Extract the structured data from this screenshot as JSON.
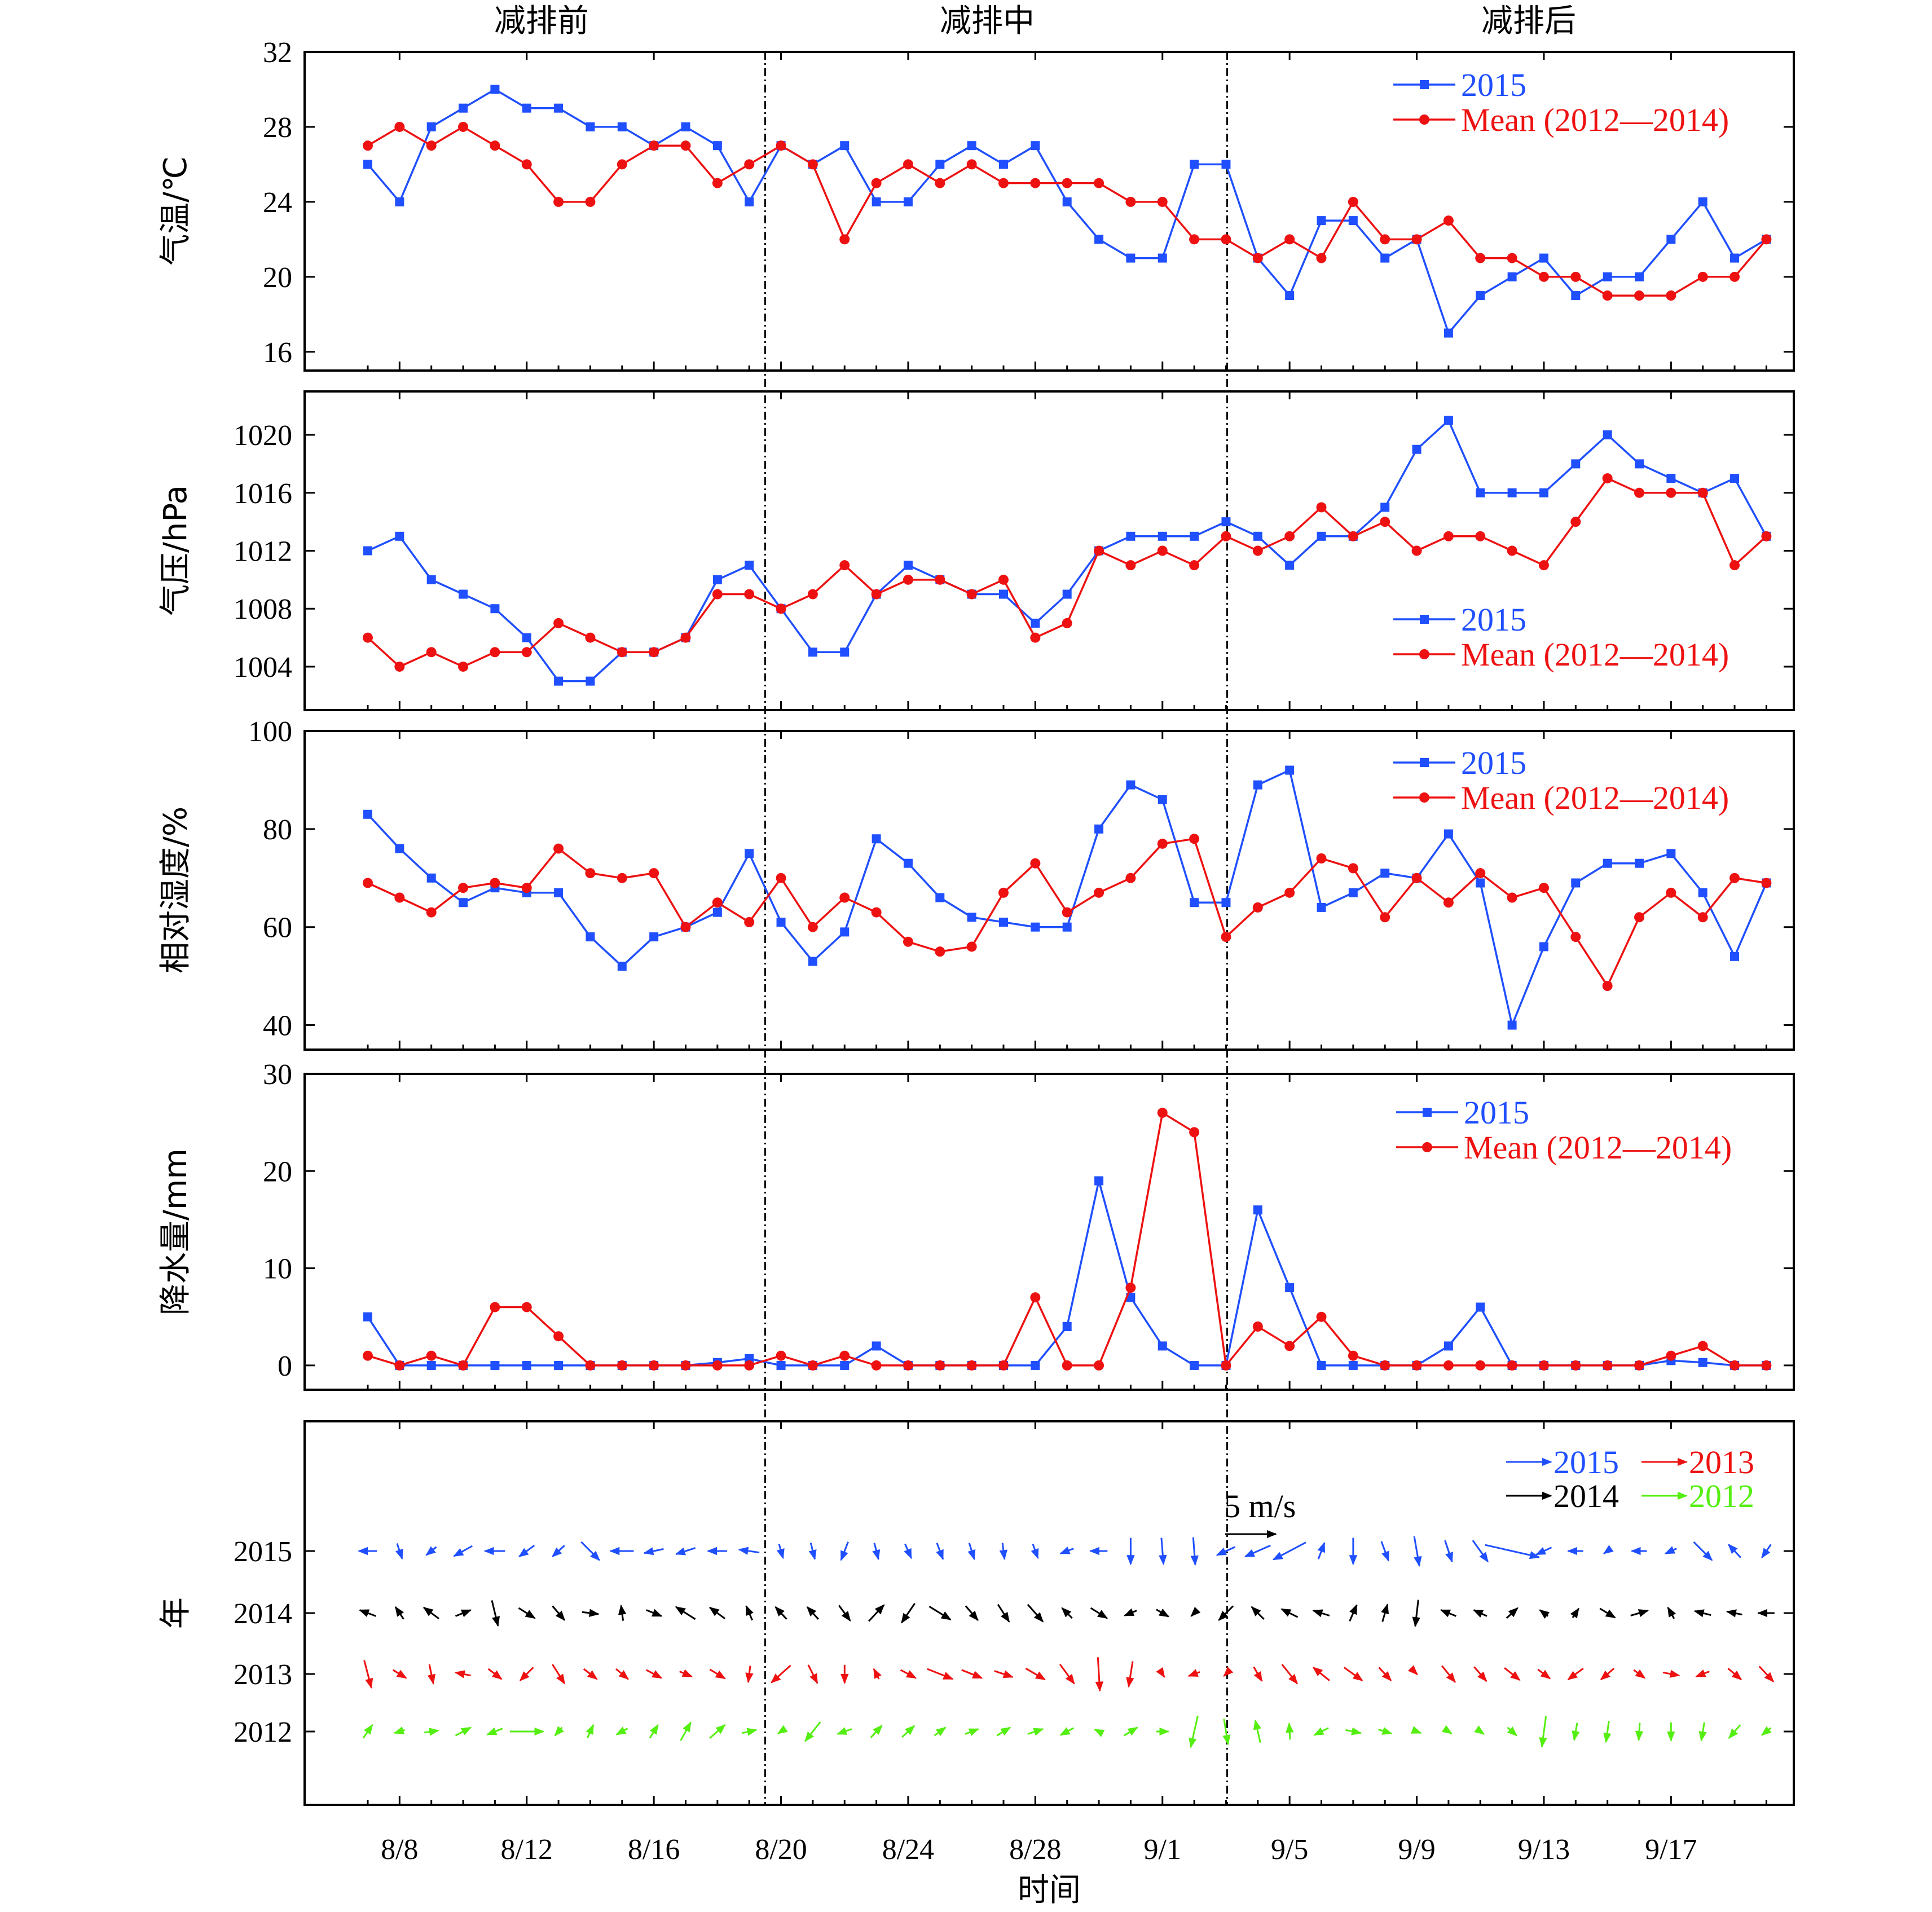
{
  "chart_data": {
    "type": "line",
    "dates": [
      "8/7",
      "8/8",
      "8/9",
      "8/10",
      "8/11",
      "8/12",
      "8/13",
      "8/14",
      "8/15",
      "8/16",
      "8/17",
      "8/18",
      "8/19",
      "8/20",
      "8/21",
      "8/22",
      "8/23",
      "8/24",
      "8/25",
      "8/26",
      "8/27",
      "8/28",
      "8/29",
      "8/30",
      "8/31",
      "9/1",
      "9/2",
      "9/3",
      "9/4",
      "9/5",
      "9/6",
      "9/7",
      "9/8",
      "9/9",
      "9/10",
      "9/11",
      "9/12",
      "9/13",
      "9/14",
      "9/15",
      "9/16",
      "9/17",
      "9/18",
      "9/19",
      "9/20"
    ],
    "xticks": [
      "8/8",
      "8/12",
      "8/16",
      "8/20",
      "8/24",
      "8/28",
      "9/1",
      "9/5",
      "9/9",
      "9/13",
      "9/17"
    ],
    "xlabel": "时间",
    "phases": [
      "减排前",
      "减排中",
      "减排后"
    ],
    "phase_dividers_between": [
      "8/19",
      "9/3"
    ],
    "panels": [
      {
        "id": "temperature",
        "ylabel": "气温/℃",
        "ylim": [
          15,
          32
        ],
        "yticks": [
          16,
          20,
          24,
          28,
          32
        ],
        "legend": [
          "2015",
          "Mean (2012—2014)"
        ],
        "series": [
          {
            "name": "2015",
            "color": "#1f4fff",
            "marker": "square",
            "values": [
              26,
              24,
              28,
              29,
              30,
              29,
              29,
              28,
              28,
              27,
              28,
              27,
              24,
              27,
              26,
              27,
              24,
              24,
              26,
              27,
              26,
              27,
              24,
              22,
              21,
              21,
              26,
              26,
              21,
              19,
              23,
              23,
              21,
              22,
              17,
              19,
              20,
              21,
              19,
              20,
              20,
              22,
              24,
              21,
              22
            ]
          },
          {
            "name": "Mean (2012—2014)",
            "color": "#ee1111",
            "marker": "circle",
            "values": [
              27,
              28,
              27,
              28,
              27,
              26,
              24,
              24,
              26,
              27,
              27,
              25,
              26,
              27,
              26,
              22,
              25,
              26,
              25,
              26,
              25,
              25,
              25,
              25,
              24,
              24,
              22,
              22,
              21,
              22,
              21,
              24,
              22,
              22,
              23,
              21,
              21,
              20,
              20,
              19,
              19,
              19,
              20,
              20,
              22
            ]
          }
        ]
      },
      {
        "id": "pressure",
        "ylabel": "气压/hPa",
        "ylim": [
          1001,
          1023
        ],
        "yticks": [
          1004,
          1008,
          1012,
          1016,
          1020
        ],
        "legend": [
          "2015",
          "Mean (2012—2014)"
        ],
        "series": [
          {
            "name": "2015",
            "color": "#1f4fff",
            "marker": "square",
            "values": [
              1012,
              1013,
              1010,
              1009,
              1008,
              1006,
              1003,
              1003,
              1005,
              1005,
              1006,
              1010,
              1011,
              1008,
              1005,
              1005,
              1009,
              1011,
              1010,
              1009,
              1009,
              1007,
              1009,
              1012,
              1013,
              1013,
              1013,
              1014,
              1013,
              1011,
              1013,
              1013,
              1015,
              1019,
              1021,
              1016,
              1016,
              1016,
              1018,
              1020,
              1018,
              1017,
              1016,
              1017,
              1013
            ]
          },
          {
            "name": "Mean (2012—2014)",
            "color": "#ee1111",
            "marker": "circle",
            "values": [
              1006,
              1004,
              1005,
              1004,
              1005,
              1005,
              1007,
              1006,
              1005,
              1005,
              1006,
              1009,
              1009,
              1008,
              1009,
              1011,
              1009,
              1010,
              1010,
              1009,
              1010,
              1006,
              1007,
              1012,
              1011,
              1012,
              1011,
              1013,
              1012,
              1013,
              1015,
              1013,
              1014,
              1012,
              1013,
              1013,
              1012,
              1011,
              1014,
              1017,
              1016,
              1016,
              1016,
              1011,
              1013
            ]
          }
        ]
      },
      {
        "id": "humidity",
        "ylabel": "相对湿度/%",
        "ylim": [
          35,
          100
        ],
        "yticks": [
          40,
          60,
          80,
          100
        ],
        "legend": [
          "2015",
          "Mean (2012—2014)"
        ],
        "series": [
          {
            "name": "2015",
            "color": "#1f4fff",
            "marker": "square",
            "values": [
              83,
              76,
              70,
              65,
              68,
              67,
              67,
              58,
              52,
              58,
              60,
              63,
              75,
              61,
              53,
              59,
              78,
              73,
              66,
              62,
              61,
              60,
              60,
              80,
              89,
              86,
              65,
              65,
              89,
              92,
              64,
              67,
              71,
              70,
              79,
              69,
              40,
              56,
              69,
              73,
              73,
              75,
              67,
              54,
              69
            ]
          },
          {
            "name": "Mean (2012—2014)",
            "color": "#ee1111",
            "marker": "circle",
            "values": [
              69,
              66,
              63,
              68,
              69,
              68,
              76,
              71,
              70,
              71,
              60,
              65,
              61,
              70,
              60,
              66,
              63,
              57,
              55,
              56,
              67,
              73,
              63,
              67,
              70,
              77,
              78,
              58,
              64,
              67,
              74,
              72,
              62,
              70,
              65,
              71,
              66,
              68,
              58,
              48,
              62,
              67,
              62,
              70,
              69
            ]
          }
        ]
      },
      {
        "id": "precipitation",
        "ylabel": "降水量/mm",
        "ylim": [
          -2.5,
          30
        ],
        "yticks": [
          0,
          10,
          20,
          30
        ],
        "legend": [
          "2015",
          "Mean (2012—2014)"
        ],
        "series": [
          {
            "name": "2015",
            "color": "#1f4fff",
            "marker": "square",
            "values": [
              5,
              0,
              0,
              0,
              0,
              0,
              0,
              0,
              0,
              0,
              0,
              0.3,
              0.7,
              0,
              0,
              0,
              2,
              0,
              0,
              0,
              0,
              0,
              4,
              19,
              7,
              2,
              0,
              0,
              16,
              8,
              0,
              0,
              0,
              0,
              2,
              6,
              0,
              0,
              0,
              0,
              0,
              0.5,
              0.3,
              0,
              0
            ]
          },
          {
            "name": "Mean (2012—2014)",
            "color": "#ee1111",
            "marker": "circle",
            "values": [
              1,
              0,
              1,
              0,
              6,
              6,
              3,
              0,
              0,
              0,
              0,
              0,
              0,
              1,
              0,
              1,
              0,
              0,
              0,
              0,
              0,
              7,
              0,
              0,
              8,
              26,
              24,
              0,
              4,
              2,
              5,
              1,
              0,
              0,
              0,
              0,
              0,
              0,
              0,
              0,
              0,
              1,
              2,
              0,
              0
            ]
          }
        ]
      },
      {
        "id": "wind",
        "ylabel": "年",
        "yticks": [
          "2015",
          "2014",
          "2013",
          "2012"
        ],
        "scale_label": "5 m/s",
        "scale_ms": 5,
        "legend": [
          {
            "name": "2015",
            "color": "#1f4fff"
          },
          {
            "name": "2013",
            "color": "#ee1111"
          },
          {
            "name": "2014",
            "color": "#000000"
          },
          {
            "name": "2012",
            "color": "#55ee11"
          }
        ],
        "series": [
          {
            "name": "2015",
            "color": "#1f4fff",
            "u": [
              -1.8,
              0.5,
              -1,
              -1.8,
              -2,
              -1.5,
              -1.2,
              1.8,
              -2.3,
              -1.9,
              -1.9,
              -1.9,
              -2,
              0.4,
              0.4,
              -0.7,
              0.4,
              0.6,
              0.6,
              0.5,
              0.2,
              0.5,
              -1.3,
              -1.7,
              0,
              0.2,
              0.2,
              -1.8,
              -2.5,
              -3.2,
              0.6,
              0,
              0.7,
              0.5,
              0.7,
              1.5,
              5.3,
              -1.5,
              -1.5,
              -0.7,
              -1.5,
              -1.1,
              1.8,
              -1.2,
              -0.9
            ],
            "v": [
              0,
              -1.5,
              -0.8,
              -1,
              0,
              -1.1,
              -1.1,
              -1.8,
              0,
              -0.4,
              -0.6,
              0,
              0.3,
              -1.4,
              -1.6,
              -1.8,
              -1.6,
              -1.4,
              -1.6,
              -1.6,
              -1.6,
              -1.4,
              -0.5,
              0,
              -2.6,
              -2.6,
              -2.7,
              -0.8,
              -1.1,
              -1.7,
              1.6,
              -2.6,
              -1.9,
              -2.9,
              -2.1,
              -2.1,
              -1.2,
              -0.7,
              0,
              -0.5,
              0,
              -0.5,
              -1.8,
              1.3,
              -1.3
            ]
          },
          {
            "name": "2014",
            "color": "#000000",
            "u": [
              -1.6,
              -0.8,
              -1.5,
              1.5,
              0.6,
              1.6,
              1.2,
              1.6,
              -0.2,
              1.5,
              -1.9,
              -1.5,
              -0.6,
              -1.1,
              -1.1,
              1.1,
              1.5,
              -1.3,
              2.1,
              1.2,
              1.1,
              1.5,
              -1,
              1.6,
              -1.2,
              1.2,
              -0.6,
              -1.4,
              -1.2,
              -1.6,
              -1.6,
              0.7,
              0.5,
              -0.3,
              -1.5,
              -1.3,
              1.1,
              -0.8,
              0.6,
              1.5,
              1.7,
              -0.6,
              -1.6,
              -1.5,
              -1.6
            ],
            "v": [
              0.6,
              1.2,
              1.1,
              0.6,
              -2.5,
              -1,
              -1.4,
              -0.2,
              1.5,
              -0.6,
              1.2,
              1.1,
              1.4,
              1.2,
              1.2,
              -1.5,
              1.6,
              -1.9,
              -1.3,
              -1.4,
              -1.7,
              -1.7,
              1,
              -1,
              -0.5,
              -0.7,
              -0.6,
              -1.4,
              1.2,
              0.8,
              0.5,
              1.6,
              1.7,
              -2.6,
              0.6,
              0.6,
              1,
              0.6,
              0.9,
              -0.9,
              0.5,
              1.1,
              0.4,
              0.3,
              0
            ]
          },
          {
            "name": "2013",
            "color": "#ee1111",
            "u": [
              0.7,
              1.3,
              0.4,
              -1.5,
              1.3,
              -1.3,
              1.2,
              1.3,
              1.2,
              1.5,
              1.2,
              1.5,
              -0.2,
              -1.9,
              0.9,
              0,
              -0.5,
              1.5,
              2.5,
              2,
              1.8,
              1.9,
              1.4,
              0.2,
              -0.4,
              0.4,
              -1.1,
              -0.4,
              0.8,
              1.5,
              -1.6,
              1.8,
              1.2,
              0.1,
              1.3,
              1.2,
              1.5,
              1.2,
              -1.5,
              -1.3,
              1.1,
              1.6,
              -1.3,
              1.3,
              1.4
            ],
            "v": [
              -2.7,
              -0.8,
              -1.9,
              0.3,
              -1,
              -1.3,
              -1.9,
              -1,
              -1,
              -0.8,
              -0.5,
              -0.9,
              -1.6,
              -1.7,
              -1.8,
              -1.8,
              1,
              -0.8,
              -1,
              -0.8,
              -0.6,
              -1.1,
              -1.9,
              -3.3,
              -2.5,
              -0.6,
              -0.4,
              -0.4,
              -1.4,
              -1.9,
              1.3,
              -1.3,
              -1.3,
              -0.1,
              -1.6,
              -1.4,
              -1.2,
              -0.9,
              -1.1,
              -1.1,
              -0.8,
              -0.3,
              -0.5,
              -1.1,
              -1.5
            ]
          },
          {
            "name": "2012",
            "color": "#55ee11",
            "u": [
              0.9,
              -1,
              1.4,
              1.5,
              -1.5,
              3.3,
              -0.7,
              0.6,
              -1.1,
              0.8,
              1,
              1.5,
              1.4,
              -0.6,
              -1.5,
              -1.4,
              1.1,
              1.2,
              1.1,
              1.3,
              1.3,
              1.5,
              -1.3,
              -0.8,
              1.3,
              1.2,
              -0.7,
              0.4,
              -0.5,
              -0.1,
              -1.4,
              1.5,
              1.3,
              0.8,
              0.6,
              0.7,
              0.9,
              -0.4,
              -0.3,
              -0.3,
              -0.1,
              0,
              -0.3,
              -1.1,
              -0.9
            ],
            "v": [
              1.3,
              -0.3,
              0.2,
              0.8,
              -0.6,
              0,
              -0.8,
              1.3,
              -0.6,
              1.3,
              1.8,
              1.3,
              0.3,
              -0.4,
              -1.9,
              -0.5,
              1.2,
              1.1,
              0.8,
              0.5,
              0.8,
              0.5,
              -0.7,
              0.4,
              0.8,
              0,
              -3.1,
              -2.5,
              2.2,
              1.6,
              -0.7,
              -0.3,
              -0.4,
              -0.3,
              -0.4,
              -0.5,
              -0.8,
              -3,
              -1.7,
              -2.1,
              -1.7,
              -1.8,
              -1.8,
              -1.3,
              -0.7
            ]
          }
        ]
      }
    ]
  }
}
